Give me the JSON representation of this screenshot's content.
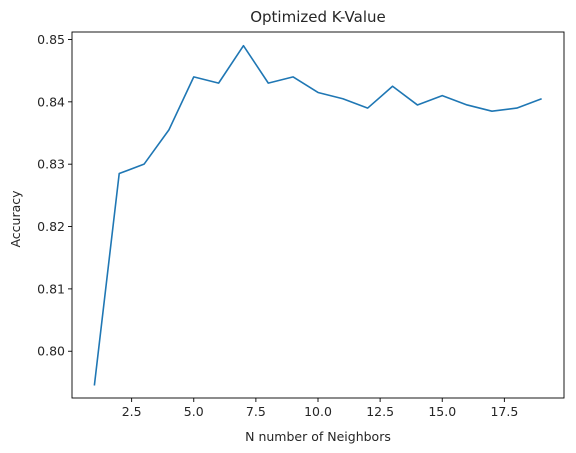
{
  "chart_data": {
    "type": "line",
    "title": "Optimized K-Value",
    "xlabel": "N number of Neighbors",
    "ylabel": "Accuracy",
    "xlim": [
      0.1,
      19.9
    ],
    "ylim": [
      0.7925,
      0.8512
    ],
    "x_ticks": [
      2.5,
      5.0,
      7.5,
      10.0,
      12.5,
      15.0,
      17.5
    ],
    "x_tick_labels": [
      "2.5",
      "5.0",
      "7.5",
      "10.0",
      "12.5",
      "15.0",
      "17.5"
    ],
    "y_ticks": [
      0.8,
      0.81,
      0.82,
      0.83,
      0.84,
      0.85
    ],
    "y_tick_labels": [
      "0.80",
      "0.81",
      "0.82",
      "0.83",
      "0.84",
      "0.85"
    ],
    "grid": false,
    "series": [
      {
        "color": "#1f77b4",
        "x": [
          1,
          2,
          3,
          4,
          5,
          6,
          7,
          8,
          9,
          10,
          11,
          12,
          13,
          14,
          15,
          16,
          17,
          18,
          19
        ],
        "y": [
          0.7945,
          0.8285,
          0.83,
          0.8355,
          0.844,
          0.843,
          0.849,
          0.843,
          0.844,
          0.8415,
          0.8405,
          0.839,
          0.8425,
          0.8395,
          0.841,
          0.8395,
          0.8385,
          0.839,
          0.8405
        ]
      }
    ]
  }
}
